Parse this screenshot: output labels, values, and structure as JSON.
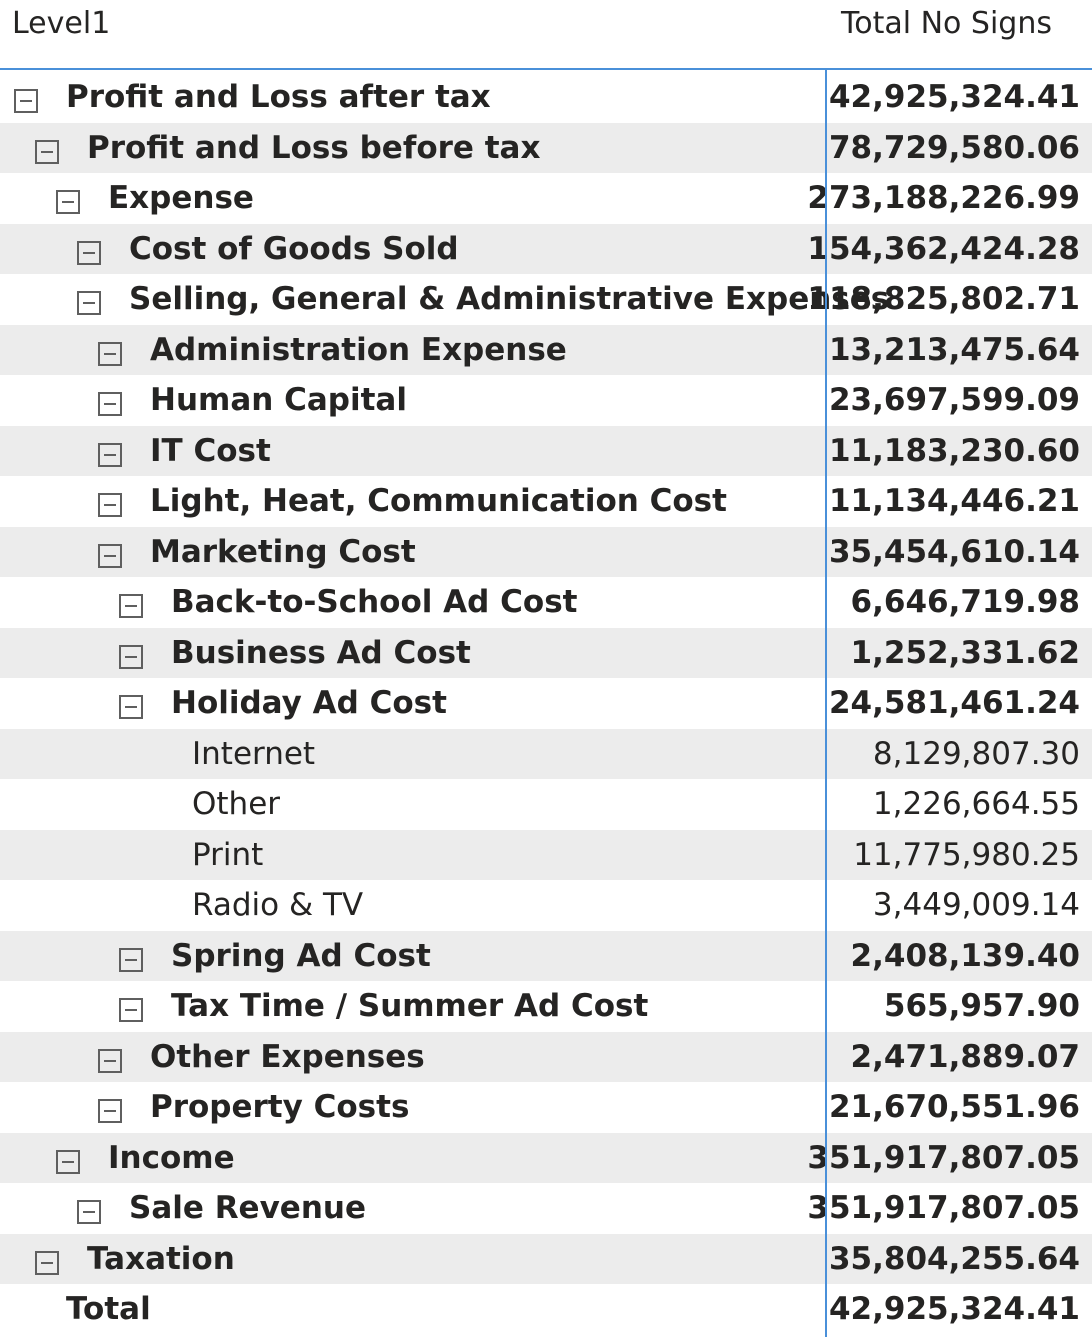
{
  "header": {
    "level_label": "Level1",
    "value_label": "Total No Signs"
  },
  "rows": [
    {
      "label": "Profit and Loss after tax",
      "value": "42,925,324.41",
      "depth": 0,
      "toggle": true,
      "bold": true
    },
    {
      "label": "Profit and Loss before tax",
      "value": "78,729,580.06",
      "depth": 1,
      "toggle": true,
      "bold": true
    },
    {
      "label": "Expense",
      "value": "273,188,226.99",
      "depth": 2,
      "toggle": true,
      "bold": true
    },
    {
      "label": "Cost of Goods Sold",
      "value": "154,362,424.28",
      "depth": 3,
      "toggle": true,
      "bold": true
    },
    {
      "label": "Selling, General & Administrative Expenses",
      "value": "118,825,802.71",
      "depth": 3,
      "toggle": true,
      "bold": true
    },
    {
      "label": "Administration Expense",
      "value": "13,213,475.64",
      "depth": 4,
      "toggle": true,
      "bold": true
    },
    {
      "label": "Human Capital",
      "value": "23,697,599.09",
      "depth": 4,
      "toggle": true,
      "bold": true
    },
    {
      "label": "IT Cost",
      "value": "11,183,230.60",
      "depth": 4,
      "toggle": true,
      "bold": true
    },
    {
      "label": "Light, Heat, Communication Cost",
      "value": "11,134,446.21",
      "depth": 4,
      "toggle": true,
      "bold": true
    },
    {
      "label": "Marketing Cost",
      "value": "35,454,610.14",
      "depth": 4,
      "toggle": true,
      "bold": true
    },
    {
      "label": "Back-to-School Ad Cost",
      "value": "6,646,719.98",
      "depth": 5,
      "toggle": true,
      "bold": true
    },
    {
      "label": "Business Ad Cost",
      "value": "1,252,331.62",
      "depth": 5,
      "toggle": true,
      "bold": true
    },
    {
      "label": "Holiday Ad Cost",
      "value": "24,581,461.24",
      "depth": 5,
      "toggle": true,
      "bold": true
    },
    {
      "label": "Internet",
      "value": "8,129,807.30",
      "depth": 6,
      "toggle": false,
      "bold": false
    },
    {
      "label": "Other",
      "value": "1,226,664.55",
      "depth": 6,
      "toggle": false,
      "bold": false
    },
    {
      "label": "Print",
      "value": "11,775,980.25",
      "depth": 6,
      "toggle": false,
      "bold": false
    },
    {
      "label": "Radio & TV",
      "value": "3,449,009.14",
      "depth": 6,
      "toggle": false,
      "bold": false
    },
    {
      "label": "Spring Ad Cost",
      "value": "2,408,139.40",
      "depth": 5,
      "toggle": true,
      "bold": true
    },
    {
      "label": "Tax Time / Summer Ad Cost",
      "value": "565,957.90",
      "depth": 5,
      "toggle": true,
      "bold": true
    },
    {
      "label": "Other Expenses",
      "value": "2,471,889.07",
      "depth": 4,
      "toggle": true,
      "bold": true
    },
    {
      "label": "Property Costs",
      "value": "21,670,551.96",
      "depth": 4,
      "toggle": true,
      "bold": true
    },
    {
      "label": "Income",
      "value": "351,917,807.05",
      "depth": 2,
      "toggle": true,
      "bold": true
    },
    {
      "label": "Sale Revenue",
      "value": "351,917,807.05",
      "depth": 3,
      "toggle": true,
      "bold": true
    },
    {
      "label": "Taxation",
      "value": "35,804,255.64",
      "depth": 1,
      "toggle": true,
      "bold": true
    },
    {
      "label": "Total",
      "value": "42,925,324.41",
      "depth": 0,
      "toggle": false,
      "bold": true,
      "total": true
    }
  ],
  "colors": {
    "accent": "#4a90d9",
    "stripe": "#ececec",
    "text": "#252423"
  },
  "icons": {
    "toggle": "collapse-minus-icon"
  }
}
